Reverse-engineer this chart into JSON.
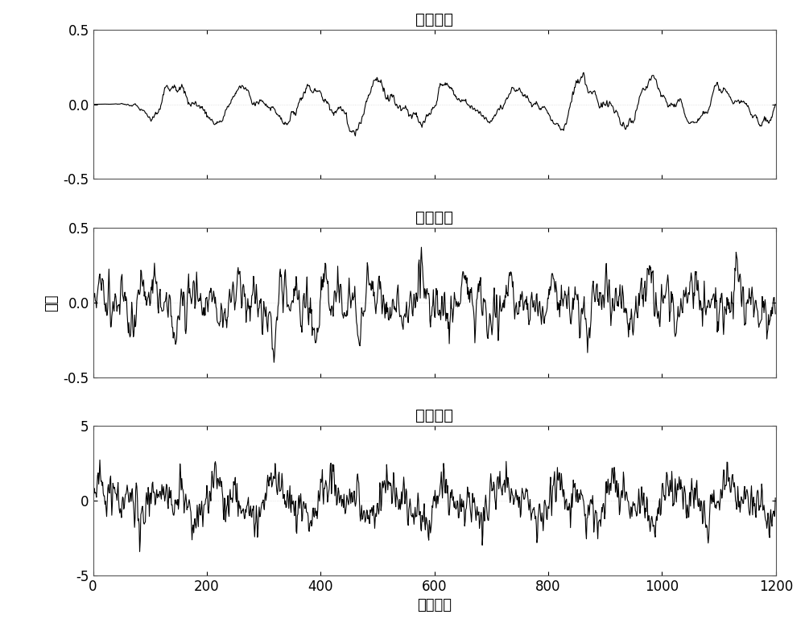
{
  "title1": "敲击信号",
  "title2": "沙纸信号",
  "title3": "断铅信号",
  "ylabel": "幅值",
  "xlabel": "采样点数",
  "xlim": [
    0,
    1200
  ],
  "ylim1": [
    -0.5,
    0.5
  ],
  "ylim2": [
    -0.5,
    0.5
  ],
  "ylim3": [
    -5,
    5
  ],
  "yticks1": [
    -0.5,
    0,
    0.5
  ],
  "yticks2": [
    -0.5,
    0,
    0.5
  ],
  "yticks3": [
    -5,
    0,
    5
  ],
  "xticks": [
    0,
    200,
    400,
    600,
    800,
    1000,
    1200
  ],
  "n_points": 1200,
  "line_color": "#000000",
  "bg_color": "#ffffff",
  "grid_color": "#d0d0d0",
  "title_fontsize": 14,
  "label_fontsize": 13,
  "tick_fontsize": 12
}
